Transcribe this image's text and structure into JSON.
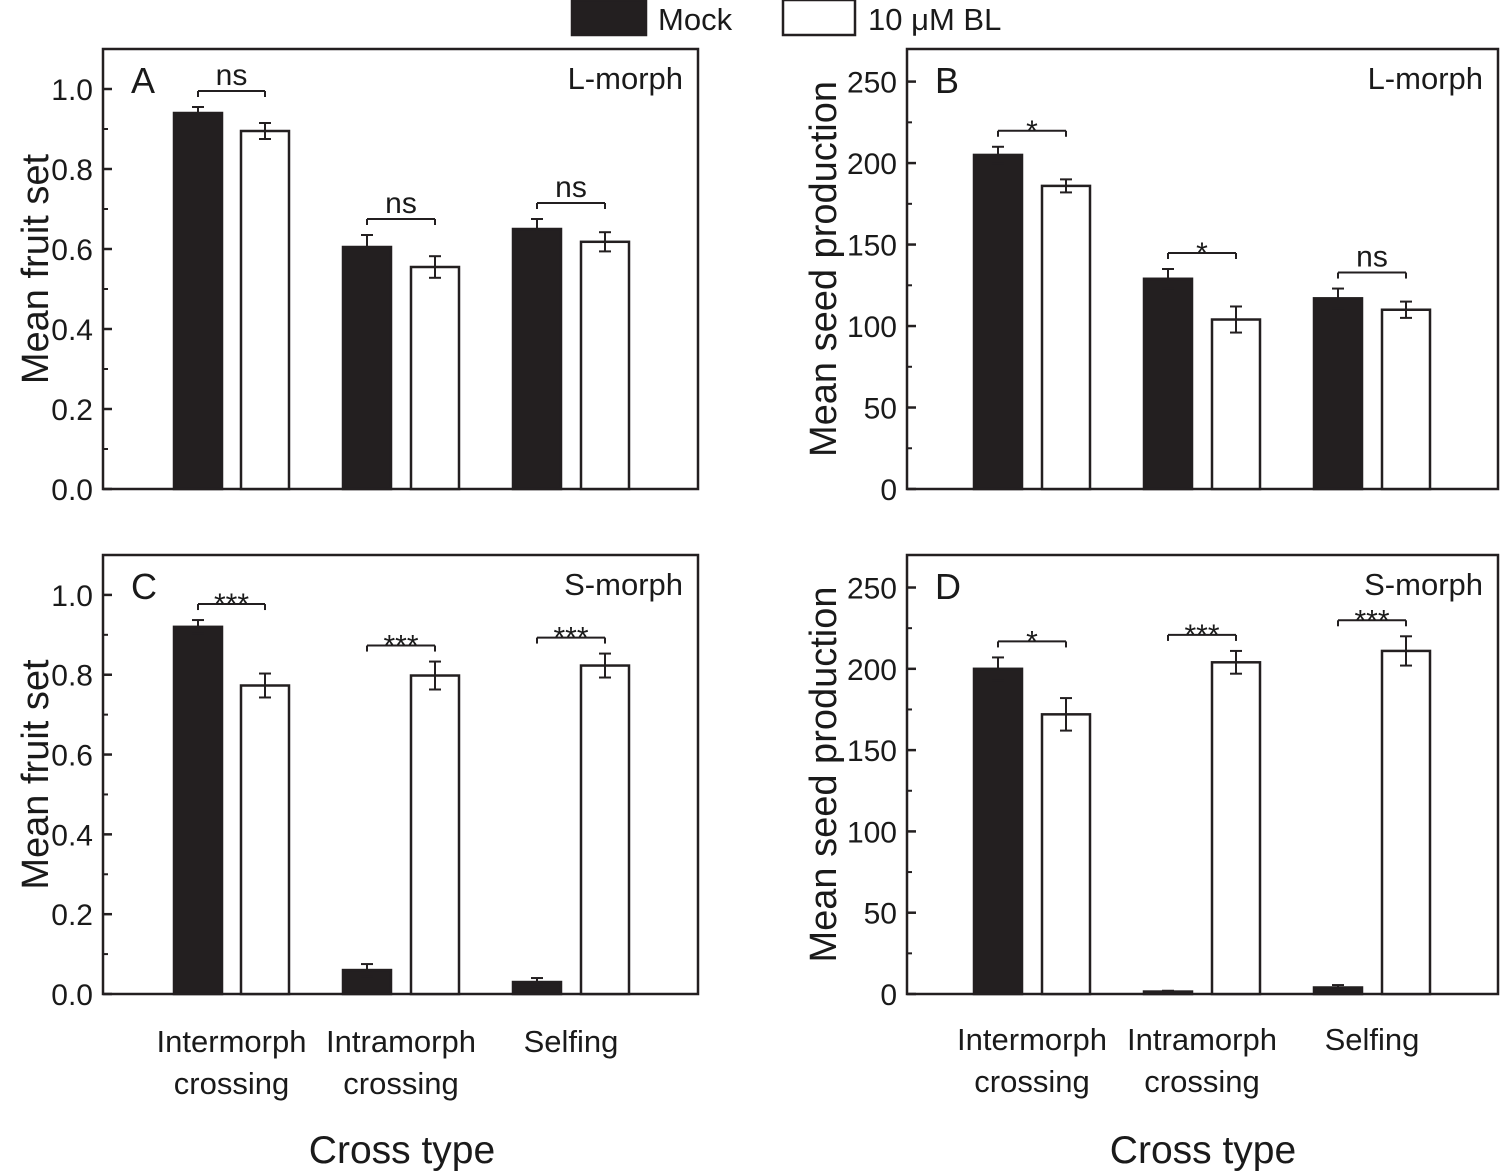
{
  "legend": {
    "items": [
      {
        "label": "Mock",
        "fill": "#231f20"
      },
      {
        "label": "10 μM BL",
        "fill": "#ffffff"
      }
    ],
    "placement": "top-center"
  },
  "x_axis_title": "Cross type",
  "chart_data": [
    {
      "type": "bar",
      "panel": "A",
      "morph_label": "L-morph",
      "ylabel": "Mean fruit set",
      "xlabel": "Cross type",
      "ylim": [
        0,
        1.1
      ],
      "yticks": [
        "0.0",
        "0.2",
        "0.4",
        "0.6",
        "0.8",
        "1.0"
      ],
      "categories": [
        [
          "Intermorph",
          "crossing"
        ],
        [
          "Intramorph",
          "crossing"
        ],
        [
          "Selfing"
        ]
      ],
      "series": [
        {
          "name": "Mock",
          "values": [
            0.94,
            0.605,
            0.65
          ],
          "errors": [
            0.015,
            0.03,
            0.025
          ]
        },
        {
          "name": "10 μM BL",
          "values": [
            0.895,
            0.555,
            0.618
          ],
          "errors": [
            0.02,
            0.027,
            0.024
          ]
        }
      ],
      "significance": [
        "ns",
        "ns",
        "ns"
      ]
    },
    {
      "type": "bar",
      "panel": "B",
      "morph_label": "L-morph",
      "ylabel": "Mean seed production",
      "xlabel": "Cross type",
      "ylim": [
        0,
        270
      ],
      "yticks": [
        "0",
        "50",
        "100",
        "150",
        "200",
        "250"
      ],
      "categories": [
        [
          "Intermorph",
          "crossing"
        ],
        [
          "Intramorph",
          "crossing"
        ],
        [
          "Selfing"
        ]
      ],
      "series": [
        {
          "name": "Mock",
          "values": [
            205,
            129,
            117
          ],
          "errors": [
            5,
            6,
            6
          ]
        },
        {
          "name": "10 μM BL",
          "values": [
            186,
            104,
            110
          ],
          "errors": [
            4,
            8,
            5
          ]
        }
      ],
      "significance": [
        "*",
        "*",
        "ns"
      ]
    },
    {
      "type": "bar",
      "panel": "C",
      "morph_label": "S-morph",
      "ylabel": "Mean fruit set",
      "xlabel": "Cross type",
      "ylim": [
        0,
        1.1
      ],
      "yticks": [
        "0.0",
        "0.2",
        "0.4",
        "0.6",
        "0.8",
        "1.0"
      ],
      "categories": [
        [
          "Intermorph",
          "crossing"
        ],
        [
          "Intramorph",
          "crossing"
        ],
        [
          "Selfing"
        ]
      ],
      "series": [
        {
          "name": "Mock",
          "values": [
            0.92,
            0.06,
            0.03
          ],
          "errors": [
            0.017,
            0.015,
            0.01
          ]
        },
        {
          "name": "10 μM BL",
          "values": [
            0.773,
            0.798,
            0.823
          ],
          "errors": [
            0.03,
            0.035,
            0.03
          ]
        }
      ],
      "significance": [
        "***",
        "***",
        "***"
      ]
    },
    {
      "type": "bar",
      "panel": "D",
      "morph_label": "S-morph",
      "ylabel": "Mean seed production",
      "xlabel": "Cross type",
      "ylim": [
        0,
        270
      ],
      "yticks": [
        "0",
        "50",
        "100",
        "150",
        "200",
        "250"
      ],
      "categories": [
        [
          "Intermorph",
          "crossing"
        ],
        [
          "Intramorph",
          "crossing"
        ],
        [
          "Selfing"
        ]
      ],
      "series": [
        {
          "name": "Mock",
          "values": [
            200,
            1.5,
            4
          ],
          "errors": [
            7,
            0.5,
            1.5
          ]
        },
        {
          "name": "10 μM BL",
          "values": [
            172,
            204,
            211
          ],
          "errors": [
            10,
            7,
            9
          ]
        }
      ],
      "significance": [
        "*",
        "***",
        "***"
      ]
    }
  ]
}
